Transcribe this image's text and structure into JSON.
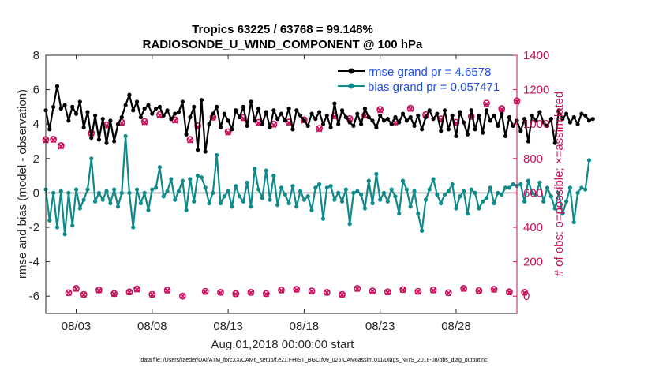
{
  "chart_data": {
    "type": "line",
    "title_line1": "Tropics 63225 / 63768 = 99.148%",
    "title_line2": "RADIOSONDE_U_WIND_COMPONENT @ 100 hPa",
    "xlabel": "Aug.01,2018 00:00:00 start",
    "ylabel_left": "rmse and bias (model - observation)",
    "ylabel_right": "# of obs: o=possible; ×=assimilated",
    "xlim": [
      1.0,
      32.0
    ],
    "ylim_left": [
      -7,
      8
    ],
    "ylim_right": [
      -100,
      1400
    ],
    "x_ticks": [
      3,
      8,
      13,
      18,
      23,
      28
    ],
    "x_tick_labels": [
      "08/03",
      "08/08",
      "08/13",
      "08/18",
      "08/23",
      "08/28"
    ],
    "y_ticks_left": [
      -6,
      -4,
      -2,
      0,
      2,
      4,
      6,
      8
    ],
    "y_tick_labels_left": [
      "-6",
      "-4",
      "-2",
      "0",
      "2",
      "4",
      "6",
      "8"
    ],
    "y_ticks_right": [
      0,
      200,
      400,
      600,
      800,
      1000,
      1200,
      1400
    ],
    "y_tick_labels_right": [
      "0",
      "200",
      "400",
      "600",
      "800",
      "1000",
      "1200",
      "1400"
    ],
    "zero_line": 0,
    "series": [
      {
        "name": "rmse grand pr = 4.6578",
        "axis": "left",
        "color": "#000000",
        "marker": "dot",
        "x_start": 1.0,
        "x_step": 0.25,
        "values": [
          4.8,
          3.7,
          5.0,
          6.2,
          4.9,
          5.1,
          4.2,
          5.0,
          4.6,
          5.3,
          3.8,
          4.7,
          3.2,
          4.5,
          3.1,
          4.3,
          2.9,
          4.2,
          3.0,
          4.0,
          4.4,
          5.1,
          5.7,
          4.8,
          5.3,
          4.4,
          4.9,
          5.1,
          4.6,
          4.9,
          5.0,
          4.5,
          4.8,
          4.3,
          4.6,
          4.7,
          5.3,
          3.4,
          4.4,
          5.0,
          2.5,
          5.4,
          2.4,
          4.0,
          4.6,
          5.0,
          3.8,
          4.6,
          4.2,
          3.7,
          4.8,
          4.4,
          5.0,
          3.9,
          5.3,
          4.2,
          4.9,
          4.0,
          4.7,
          3.8,
          4.8,
          4.3,
          4.6,
          4.2,
          4.9,
          3.7,
          4.8,
          4.5,
          4.2,
          3.9,
          4.6,
          4.3,
          4.7,
          4.0,
          4.5,
          3.8,
          5.2,
          4.0,
          4.8,
          4.4,
          4.1,
          3.9,
          4.6,
          4.0,
          4.9,
          4.4,
          4.2,
          3.8,
          4.5,
          4.2,
          4.3,
          4.0,
          4.4,
          4.1,
          4.6,
          4.2,
          4.4,
          3.9,
          4.5,
          3.7,
          4.4,
          4.8,
          4.3,
          4.6,
          3.6,
          4.8,
          3.7,
          4.5,
          3.3,
          4.7,
          4.1,
          3.4,
          4.8,
          3.7,
          4.5,
          3.5,
          4.8,
          4.2,
          4.5,
          3.9,
          4.6,
          3.3,
          4.4,
          3.9,
          4.2,
          3.6,
          4.3,
          3.0,
          4.5,
          4.2,
          4.7,
          4.1,
          3.9,
          4.3,
          2.9,
          4.8,
          4.3,
          4.6,
          4.1,
          4.4,
          4.0,
          4.6,
          4.5,
          4.2,
          4.3
        ]
      },
      {
        "name": "bias grand pr = 0.057471",
        "axis": "left",
        "color": "#0f8a8a",
        "marker": "dot",
        "x_start": 1.0,
        "x_step": 0.25,
        "values": [
          0.2,
          -1.6,
          0.0,
          -2.0,
          0.1,
          -2.4,
          0.0,
          -1.9,
          0.2,
          -0.9,
          -0.4,
          0.2,
          2.0,
          -0.5,
          0.0,
          -0.4,
          0.1,
          -0.6,
          0.2,
          -0.8,
          0.0,
          3.3,
          0.0,
          -2.0,
          0.2,
          -0.6,
          0.0,
          -1.0,
          0.2,
          0.3,
          1.5,
          -0.2,
          0.1,
          0.8,
          -0.4,
          0.1,
          0.7,
          -1.0,
          0.8,
          -0.5,
          1.0,
          0.9,
          0.3,
          -0.6,
          0.0,
          2.2,
          -0.6,
          -0.2,
          0.1,
          -0.8,
          0.4,
          -0.2,
          -0.5,
          0.6,
          -0.8,
          1.4,
          0.2,
          -0.3,
          1.3,
          -0.4,
          1.0,
          -0.7,
          0.3,
          -0.1,
          -0.6,
          0.4,
          -0.8,
          0.1,
          -0.4,
          -0.2,
          -1.0,
          0.3,
          0.5,
          -1.5,
          0.3,
          0.4,
          -0.4,
          0.0,
          -0.5,
          0.2,
          -1.8,
          0.0,
          0.1,
          -0.1,
          -0.9,
          0.7,
          -0.6,
          1.1,
          -0.4,
          0.0,
          -0.5,
          0.2,
          -0.2,
          -1.2,
          0.7,
          0.2,
          -0.8,
          0.1,
          -1.2,
          -2.2,
          -0.4,
          0.2,
          0.8,
          -0.1,
          -0.6,
          -0.1,
          0.1,
          0.5,
          -0.9,
          -0.2,
          0.1,
          -1.2,
          0.2,
          0.0,
          -0.9,
          -0.5,
          -0.3,
          0.3,
          -0.6,
          0.0,
          -0.1,
          0.3,
          0.3,
          0.5,
          0.4,
          0.5,
          -0.5,
          0.7,
          0.0,
          -0.1,
          0.6,
          -0.5,
          0.3,
          -0.2,
          -0.9,
          0.0,
          -1.2,
          -0.5,
          0.3,
          -1.7,
          0.0,
          0.3,
          0.2,
          1.9
        ]
      },
      {
        "name": "obs possible",
        "axis": "right",
        "color": "#cc0f5c",
        "marker": "circle",
        "x_start": 1.0,
        "x_step": 0.5,
        "values": [
          910,
          912,
          875,
          20,
          45,
          10,
          948,
          36,
          995,
          15,
          1010,
          25,
          42,
          1015,
          10,
          1055,
          35,
          1025,
          0,
          910,
          990,
          28,
          1040,
          22,
          955,
          14,
          1038,
          22,
          1010,
          15,
          1000,
          36,
          1012,
          40,
          1025,
          30,
          975,
          22,
          1048,
          10,
          1032,
          45,
          1052,
          30,
          1085,
          25,
          1013,
          38,
          1092,
          28,
          1055,
          36,
          1030,
          20,
          1010,
          45,
          1045,
          32,
          1122,
          40,
          1090,
          25,
          1135,
          22
        ]
      },
      {
        "name": "obs assimilated",
        "axis": "right",
        "color": "#cc0f5c",
        "marker": "x",
        "x_start": 1.0,
        "x_step": 0.5,
        "values": [
          905,
          908,
          870,
          18,
          42,
          8,
          945,
          33,
          990,
          12,
          1005,
          22,
          38,
          1010,
          8,
          1050,
          32,
          1020,
          0,
          905,
          985,
          25,
          1035,
          20,
          950,
          12,
          1033,
          20,
          1005,
          12,
          995,
          33,
          1007,
          37,
          1020,
          27,
          970,
          20,
          1043,
          8,
          1027,
          42,
          1047,
          27,
          1080,
          22,
          1008,
          35,
          1087,
          25,
          1050,
          33,
          1025,
          18,
          1005,
          42,
          1040,
          30,
          1117,
          37,
          1085,
          22,
          1130,
          20
        ]
      }
    ],
    "legend_position": "top-right",
    "grid": false
  },
  "footnote": "data file: /Users/raeder/DAI/ATM_forcXX/CAM6_setup/f.e21.FHIST_BGC.f09_025.CAM6assim.011/Diags_NTrS_2018-08/obs_diag_output.nc"
}
